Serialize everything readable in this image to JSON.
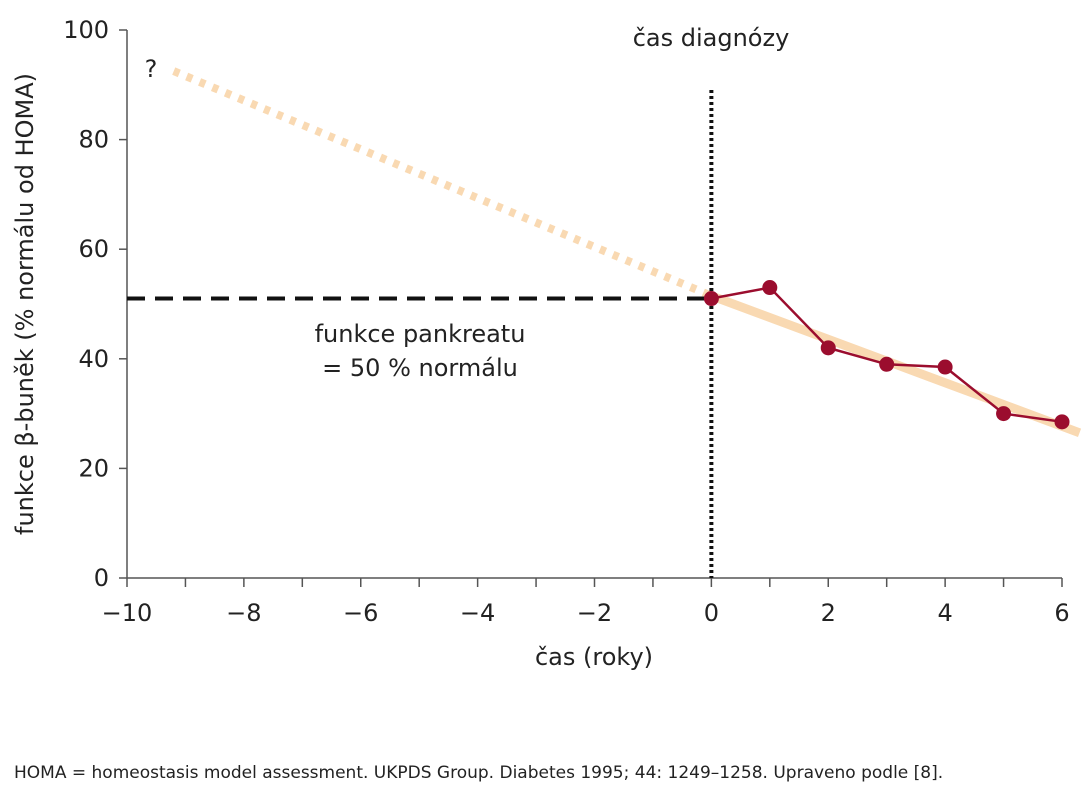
{
  "chart_data": {
    "type": "line",
    "title": "",
    "xlabel": "čas (roky)",
    "ylabel": "funkce β-buněk (% normálu od HOMA)",
    "xlim": [
      -10,
      6
    ],
    "ylim": [
      0,
      100
    ],
    "x_ticks": [
      -10,
      -8,
      -6,
      -4,
      -2,
      0,
      2,
      4,
      6
    ],
    "x_tick_labels": [
      "−10",
      "−8",
      "−6",
      "−4",
      "−2",
      "0",
      "2",
      "4",
      "6"
    ],
    "y_ticks": [
      0,
      20,
      40,
      60,
      80,
      100
    ],
    "y_tick_labels": [
      "0",
      "20",
      "40",
      "60",
      "80",
      "100"
    ],
    "grid": false,
    "series": [
      {
        "type": "line-markers",
        "color": "#9b0d2e",
        "x": [
          0,
          1,
          2,
          3,
          4,
          5,
          6
        ],
        "y": [
          51,
          53,
          42,
          39,
          38.5,
          30,
          28.5
        ]
      },
      {
        "type": "trend-line",
        "color": "#f9d9b2",
        "x": [
          0,
          6.3
        ],
        "y": [
          51.5,
          26.5
        ]
      },
      {
        "type": "extrapolated-trend-dotted",
        "color": "#f9d9b2",
        "x": [
          -9.2,
          0
        ],
        "y": [
          92.5,
          51.5
        ]
      }
    ],
    "annotations": {
      "diagnosis_label": "čas diagnózy",
      "diagnosis_x": 0,
      "question_mark": "?",
      "pancreas_line_1": "funkce pankreatu",
      "pancreas_line_2": "= 50 % normálu",
      "pancreas_level": 51
    }
  },
  "footnote": "HOMA = homeostasis model assessment. UKPDS Group. Diabetes 1995; 44: 1249–1258. Upraveno podle [8]."
}
